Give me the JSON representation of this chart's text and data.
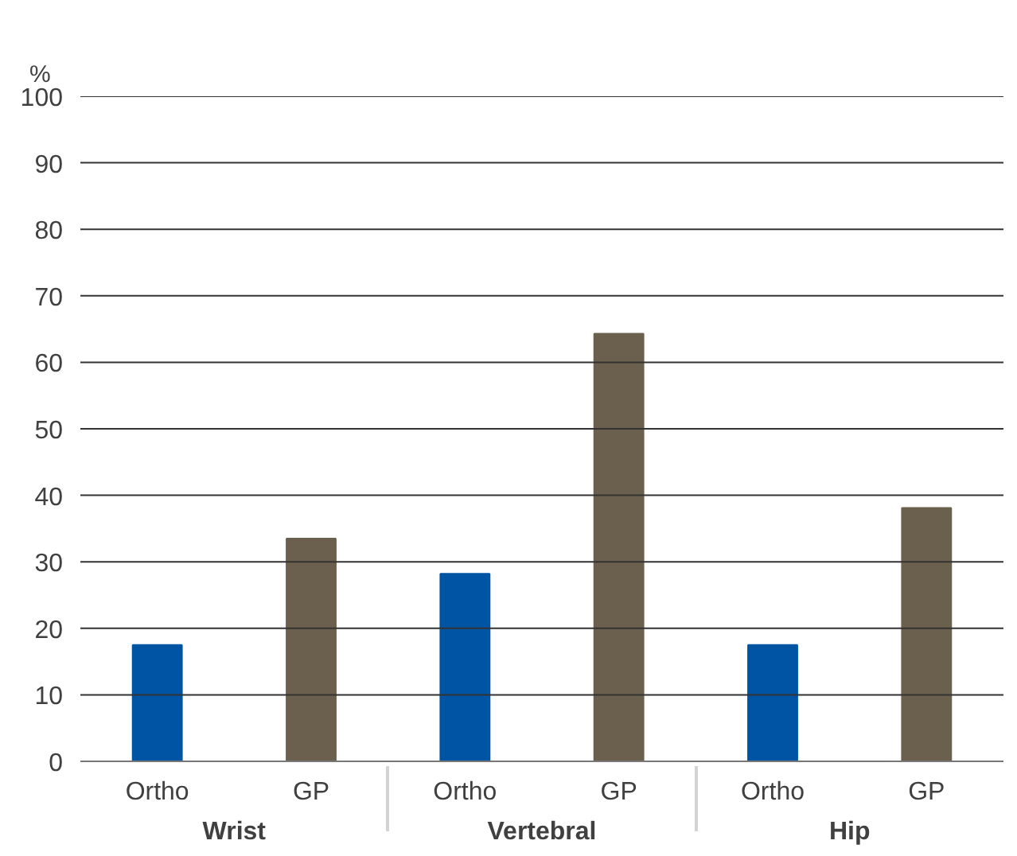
{
  "chart_data": {
    "type": "bar",
    "ylabel": "%",
    "categories": [
      "Wrist",
      "Vertebral",
      "Hip"
    ],
    "series": [
      {
        "name": "Ortho",
        "color": "#0054a4",
        "values": [
          17.5,
          28.2,
          17.5
        ]
      },
      {
        "name": "GP",
        "color": "#6b604d",
        "values": [
          33.5,
          64.3,
          38.1
        ]
      }
    ],
    "ylim": [
      0,
      100
    ],
    "yticks": [
      0,
      10,
      20,
      30,
      40,
      50,
      60,
      70,
      80,
      90,
      100
    ],
    "grid": "y"
  }
}
